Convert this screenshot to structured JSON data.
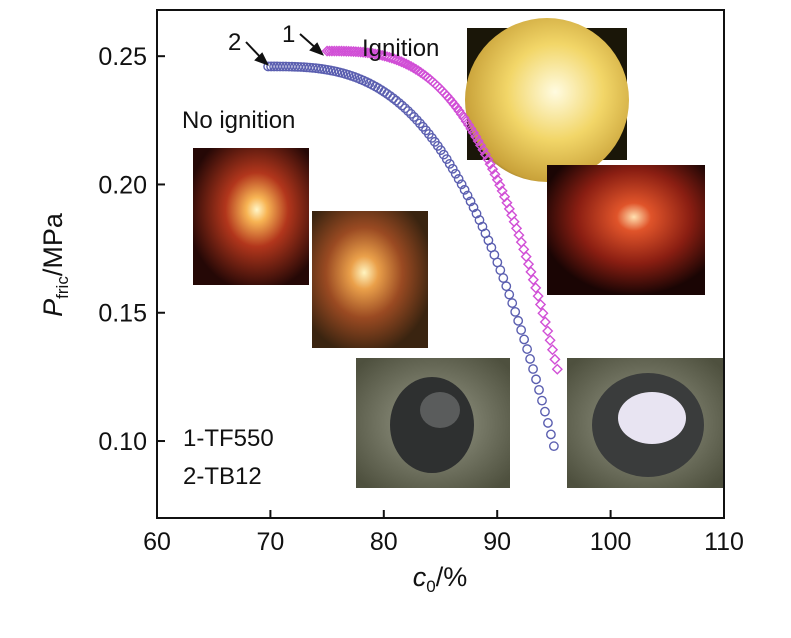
{
  "chart_data": {
    "type": "scatter",
    "xlabel": {
      "main": "c",
      "sub": "0",
      "unit": "/%"
    },
    "ylabel": {
      "main": "P",
      "sub": "fric",
      "unit": "/MPa"
    },
    "xlim": [
      60,
      110
    ],
    "ylim": [
      0.07,
      0.268
    ],
    "x_ticks": [
      "60",
      "70",
      "80",
      "90",
      "100",
      "110"
    ],
    "y_ticks": [
      "0.10",
      "0.15",
      "0.20",
      "0.25"
    ],
    "series": [
      {
        "name": "1-TF550",
        "marker_label": "1",
        "color": "#d14fd6",
        "marker": "diamond",
        "x_start": 75,
        "x_end": 95.3,
        "y_at_start": 0.252,
        "y_at_end": 0.128,
        "curve_exponent": 3
      },
      {
        "name": "2-TB12",
        "marker_label": "2",
        "color": "#5b5fb0",
        "marker": "circle",
        "x_start": 69.8,
        "x_end": 95,
        "y_at_start": 0.246,
        "y_at_end": 0.098,
        "curve_exponent": 3
      }
    ],
    "annotations": {
      "ignition": "Ignition",
      "no_ignition": "No ignition"
    },
    "legend_lines": [
      "1-TF550",
      "2-TB12"
    ],
    "legend_placement": "bottom-left",
    "grid": false
  },
  "photo_colors": {
    "bright_yellow": "#e9c650",
    "red_glow": "#b23a20",
    "orange_glow": "#c86a2a",
    "sample_gray": "#6b6e60"
  }
}
